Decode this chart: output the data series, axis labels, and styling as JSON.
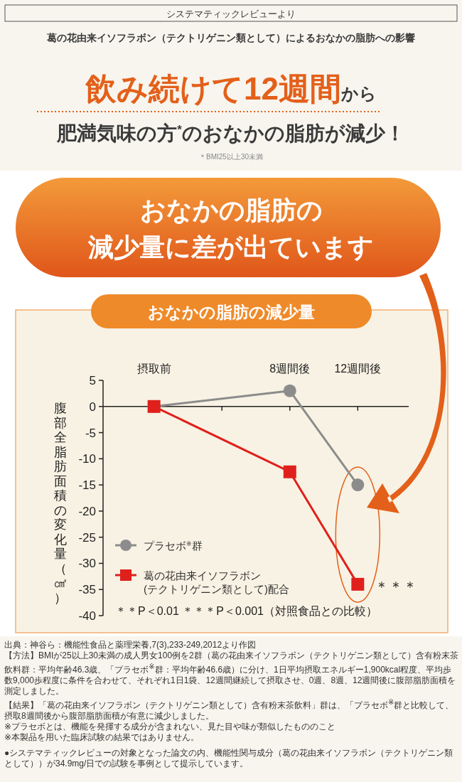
{
  "chart_data": {
    "type": "line",
    "title": "おなかの脂肪の減少量",
    "ylabel": "腹部全脂肪面積の変化量（㎠）",
    "x": [
      0,
      8,
      12
    ],
    "xlim": [
      -3,
      15
    ],
    "xticks": [
      {
        "value": 0,
        "label": "摂取前"
      },
      {
        "value": 4,
        "label": null
      },
      {
        "value": 8,
        "label": "8週間後"
      },
      {
        "value": 12,
        "label": "12週間後"
      }
    ],
    "ylim": [
      -40,
      5
    ],
    "yticks": [
      5,
      0,
      -5,
      -10,
      -15,
      -20,
      -25,
      -30,
      -35,
      -40
    ],
    "ref_lines": [
      {
        "axis": "y",
        "value": 0,
        "color": "#222222"
      }
    ],
    "legend": "bottom left",
    "series": [
      {
        "name": "プラセボ$^{※}$群",
        "color": "#8c8c8c",
        "marker": "circle",
        "values": [
          0,
          3,
          -15
        ]
      },
      {
        "name": "葛の花由来イソフラボン\n(テクトリゲニン類として)配合",
        "color": "#e0201c",
        "marker": "square",
        "values": [
          0,
          -12.5,
          -34
        ]
      }
    ],
    "annotations": [
      "システマティックレビューより",
      "葛の花由来イソフラボン（テクトリゲニン類として）によるおなかの脂肪への影響",
      "飲み続けて12週間",
      "から",
      "肥満気味の方$^{*}$のおなかの脂肪が減少！",
      "＊BMI25以上30未満",
      "おなかの脂肪の",
      "減少量に差が出ています",
      {
        "text": "＊＊＊",
        "x": 12,
        "y": -34
      },
      "＊＊P＜0.01 ＊＊＊P＜0.001（対照食品との比較）",
      "出典：神谷ら：機能性食品と薬理栄養,7(3),233-249,2012より作図",
      "【方法】BMIが25以上30未満の成人男女100例を2群（葛の花由来イソフラボン（テクトリゲニン類として）含有粉末茶飲料群：平均年齢46.3歳、「プラセボ$^{※}$群：平均年齢46.6歳）に分け、1日平均摂取エネルギー1,900kcal程度、平均歩数9,000歩程度に条件を合わせて、それぞれ1日1袋、12週間継続して摂取させ、0週、8週、12週間後に腹部脂肪面積を測定しました。",
      "【結果】「葛の花由来イソフラボン（テクトリゲニン類として）含有粉末茶飲料」群は、「プラセボ$^{※}$群と比較して、摂取8週間後から腹部脂肪面積が有意に減少しました。",
      "※プラセボとは、機能を発揮する成分が含まれない、見た目や味が類似したもののこと",
      "※本製品を用いた臨床試験の結果ではありません。",
      "●システマティックレビューの対象となった論文の内、機能性関与成分（葛の花由来イソフラボン（テクトリゲニン類として））が34.9mg/日での試験を事例として提示しています。"
    ]
  }
}
